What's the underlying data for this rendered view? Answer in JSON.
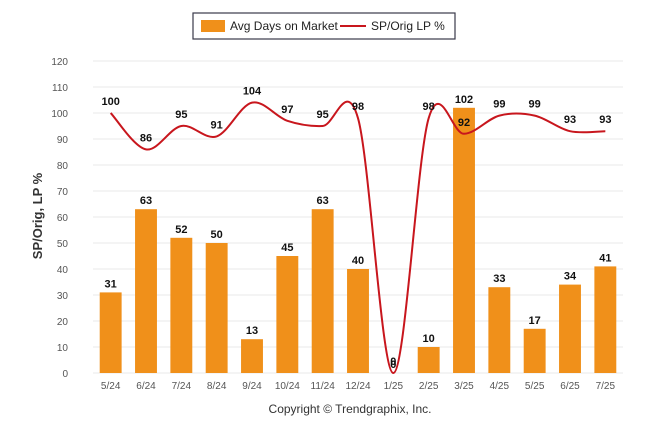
{
  "legend": {
    "bar_label": "Avg Days on Market",
    "line_label": "SP/Orig LP %"
  },
  "credit": "Copyright © Trendgraphix, Inc.",
  "chart_data": {
    "type": "bar",
    "title": "",
    "xlabel": "",
    "ylabel": "SP/Orig, LP %",
    "ylim": [
      0,
      120
    ],
    "yticks": [
      0,
      10,
      20,
      30,
      40,
      50,
      60,
      70,
      80,
      90,
      100,
      110,
      120
    ],
    "grid": true,
    "legend_position": "top-center",
    "categories": [
      "5/24",
      "6/24",
      "7/24",
      "8/24",
      "9/24",
      "10/24",
      "11/24",
      "12/24",
      "1/25",
      "2/25",
      "3/25",
      "4/25",
      "5/25",
      "6/25",
      "7/25"
    ],
    "series": [
      {
        "name": "Avg Days on Market",
        "type": "bar",
        "color": "#f0901a",
        "values": [
          31,
          63,
          52,
          50,
          13,
          45,
          63,
          40,
          0,
          10,
          102,
          33,
          17,
          34,
          41
        ]
      },
      {
        "name": "SP/Orig LP %",
        "type": "line",
        "color": "#c8161d",
        "values": [
          100,
          86,
          95,
          91,
          104,
          97,
          95,
          98,
          0,
          98,
          92,
          99,
          99,
          93,
          93
        ]
      }
    ]
  }
}
